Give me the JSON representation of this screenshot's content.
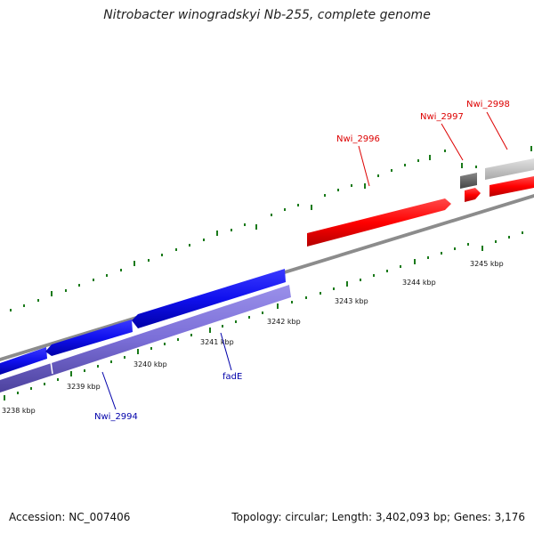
{
  "title": "Nitrobacter winogradskyi Nb-255, complete genome",
  "footer": {
    "accession": "Accession: NC_007406",
    "topology": "Topology: circular; Length: 3,402,093 bp; Genes: 3,176"
  },
  "colors": {
    "backbone": "#888888",
    "tick_green": "#1a7a1a",
    "forward_gene": "#ff0000",
    "forward_gene_dark": "#bb0000",
    "grey_gene": "#c8c8c8",
    "dark_grey_gene": "#666666",
    "reverse_gene": "#1a1aee",
    "reverse_gene_dark": "#0000a0",
    "reverse_cds": "#7b6fd8",
    "reverse_cds_dark": "#4a3f9c",
    "forward_label": "#dd0000",
    "reverse_label": "#0000aa"
  },
  "ticks": [
    "3238 kbp",
    "3239 kbp",
    "3240 kbp",
    "3241 kbp",
    "3242 kbp",
    "3243 kbp",
    "3244 kbp",
    "3245 kbp"
  ],
  "gene_labels": {
    "forward": [
      "Nwi_2996",
      "Nwi_2997",
      "Nwi_2998"
    ],
    "reverse": [
      "Nwi_2994",
      "fadE"
    ]
  }
}
